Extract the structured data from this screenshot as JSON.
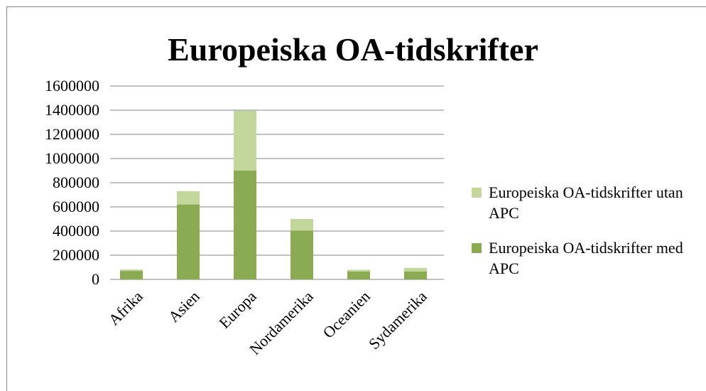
{
  "chart_data": {
    "type": "stacked_bar",
    "title": "Europeiska OA-tidskrifter",
    "categories": [
      "Afrika",
      "Asien",
      "Europa",
      "Nordamerika",
      "Oceanien",
      "Sydamerika"
    ],
    "series": [
      {
        "name": "Europeiska OA-tidskrifter med APC",
        "color": "#8aab52",
        "values": [
          70000,
          620000,
          900000,
          405000,
          65000,
          65000
        ]
      },
      {
        "name": "Europeiska OA-tidskrifter utan APC",
        "color": "#c3d69b",
        "values": [
          12000,
          110000,
          495000,
          95000,
          15000,
          30000
        ]
      }
    ],
    "ylim": [
      0,
      1600000
    ],
    "yticks": [
      0,
      200000,
      400000,
      600000,
      800000,
      1000000,
      1200000,
      1400000,
      1600000
    ],
    "grid": true,
    "legend": "right"
  }
}
